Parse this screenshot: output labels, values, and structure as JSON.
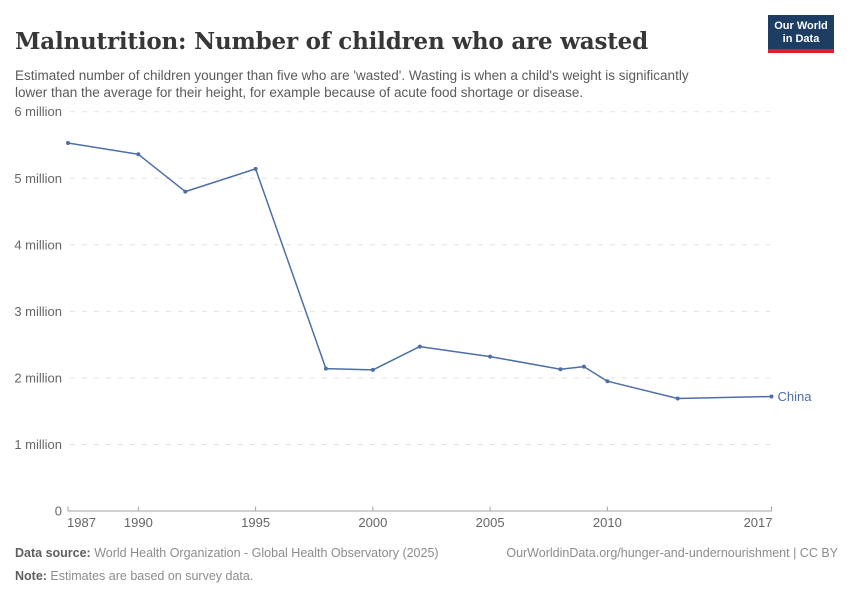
{
  "header": {
    "title": "Malnutrition: Number of children who are wasted",
    "subtitle": "Estimated number of children younger than five who are 'wasted'. Wasting is when a child's weight is significantly lower than the average for their height, for example because of acute food shortage or disease.",
    "logo": {
      "line1": "Our World",
      "line2": "in Data"
    }
  },
  "chart_data": {
    "type": "line",
    "title": "Malnutrition: Number of children who are wasted",
    "xlabel": "",
    "ylabel": "",
    "xlim": [
      1987,
      2017
    ],
    "ylim": [
      0,
      6000000
    ],
    "grid": "horizontal-dashed",
    "legend_position": "end-of-line-label",
    "x_ticks": [
      1987,
      1990,
      1995,
      2000,
      2005,
      2010,
      2017
    ],
    "y_ticks": [
      {
        "value": 0,
        "label": "0"
      },
      {
        "value": 1000000,
        "label": "1 million"
      },
      {
        "value": 2000000,
        "label": "2 million"
      },
      {
        "value": 3000000,
        "label": "3 million"
      },
      {
        "value": 4000000,
        "label": "4 million"
      },
      {
        "value": 5000000,
        "label": "5 million"
      },
      {
        "value": 6000000,
        "label": "6 million"
      }
    ],
    "series": [
      {
        "name": "China",
        "color": "#4d6fa5",
        "x": [
          1987,
          1990,
          1992,
          1995,
          1998,
          2000,
          2002,
          2005,
          2008,
          2009,
          2010,
          2013,
          2017
        ],
        "y": [
          5530000,
          5360000,
          4800000,
          5140000,
          2140000,
          2120000,
          2470000,
          2320000,
          2130000,
          2170000,
          1950000,
          1690000,
          1720000
        ]
      }
    ]
  },
  "footer": {
    "data_source_label": "Data source:",
    "data_source": " World Health Organization - Global Health Observatory (2025)",
    "link": "OurWorldinData.org/hunger-and-undernourishment | CC BY",
    "note_label": "Note:",
    "note": " Estimates are based on survey data."
  },
  "colors": {
    "accent_line": "#4d6fa5",
    "logo_navy": "#1d3d63",
    "logo_red": "#d8232e",
    "grid": "#e2e2e2",
    "axis": "#a3a3a3",
    "tick_text": "#666666"
  }
}
